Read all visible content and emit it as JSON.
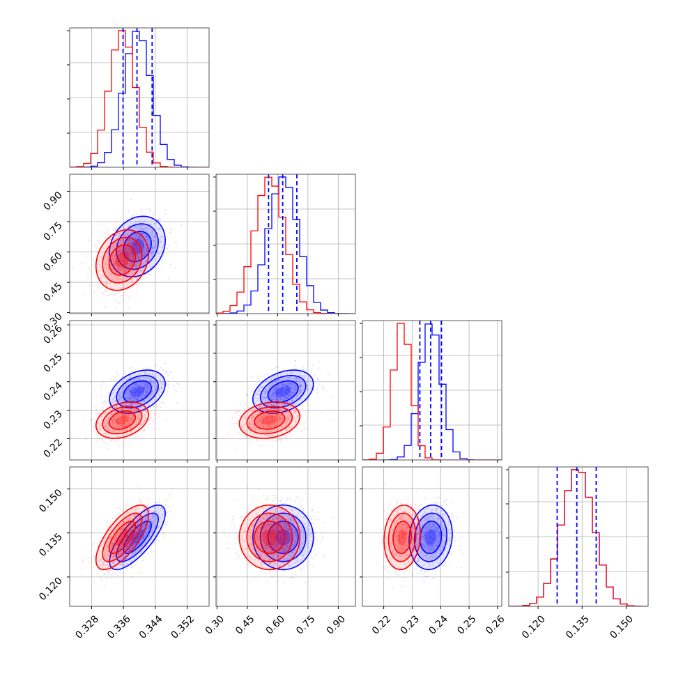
{
  "chart_data": {
    "type": "corner",
    "grid": true,
    "colors": {
      "series_a": "#0000ff",
      "series_b": "#ff0000",
      "quantiles": "#0000ff"
    },
    "parameters": [
      {
        "range": [
          0.3225,
          0.3575
        ],
        "ticks": [
          "0.328",
          "0.336",
          "0.344",
          "0.352"
        ],
        "tick_values": [
          0.328,
          0.336,
          0.344,
          0.352
        ]
      },
      {
        "range": [
          0.295,
          0.985
        ],
        "ticks": [
          "0.30",
          "0.45",
          "0.60",
          "0.75",
          "0.90"
        ],
        "tick_values": [
          0.3,
          0.45,
          0.6,
          0.75,
          0.9
        ]
      },
      {
        "range": [
          0.2125,
          0.2615
        ],
        "ticks": [
          "0.22",
          "0.23",
          "0.24",
          "0.25",
          "0.26"
        ],
        "tick_values": [
          0.22,
          0.23,
          0.24,
          0.25,
          0.26
        ]
      },
      {
        "range": [
          0.11,
          0.1575
        ],
        "ticks": [
          "0.120",
          "0.135",
          "0.150"
        ],
        "tick_values": [
          0.12,
          0.135,
          0.15
        ]
      }
    ],
    "series": [
      {
        "color": "#0000ff",
        "mean": [
          0.3395,
          0.627,
          0.2365,
          0.1335
        ],
        "sd": [
          0.0035,
          0.075,
          0.0038,
          0.0055
        ],
        "quantiles": [
          [
            0.3359,
            0.3394,
            0.3432
          ],
          [
            0.555,
            0.625,
            0.695
          ],
          [
            0.2327,
            0.2365,
            0.2403
          ],
          [
            0.1265,
            0.1332,
            0.1398
          ]
        ]
      },
      {
        "color": "#ff0000",
        "mean": [
          0.3357,
          0.56,
          0.2265,
          0.1335
        ],
        "sd": [
          0.0033,
          0.075,
          0.0032,
          0.0055
        ]
      }
    ],
    "correlations": [
      {
        "pair": [
          0,
          1
        ],
        "series_a": 0.2,
        "series_b": 0.2
      },
      {
        "pair": [
          0,
          2
        ],
        "series_a": 0.35,
        "series_b": 0.3
      },
      {
        "pair": [
          0,
          3
        ],
        "series_a": 0.75,
        "series_b": 0.7
      },
      {
        "pair": [
          1,
          2
        ],
        "series_a": 0.35,
        "series_b": 0.2
      },
      {
        "pair": [
          1,
          3
        ],
        "series_a": 0.0,
        "series_b": 0.0
      },
      {
        "pair": [
          2,
          3
        ],
        "series_a": 0.1,
        "series_b": 0.1
      }
    ]
  }
}
